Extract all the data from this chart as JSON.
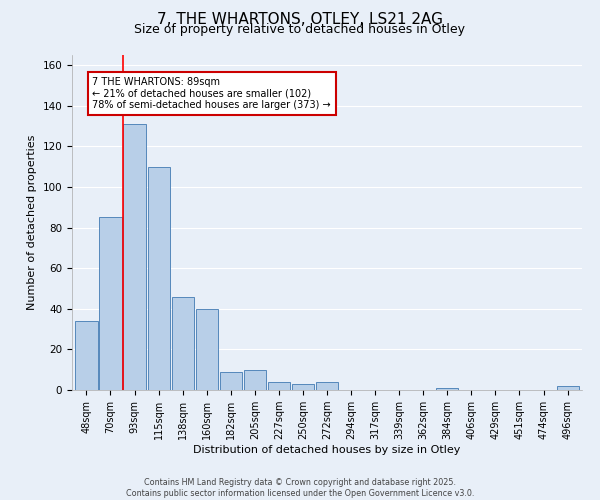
{
  "title_line1": "7, THE WHARTONS, OTLEY, LS21 2AG",
  "title_line2": "Size of property relative to detached houses in Otley",
  "xlabel": "Distribution of detached houses by size in Otley",
  "ylabel": "Number of detached properties",
  "bar_labels": [
    "48sqm",
    "70sqm",
    "93sqm",
    "115sqm",
    "138sqm",
    "160sqm",
    "182sqm",
    "205sqm",
    "227sqm",
    "250sqm",
    "272sqm",
    "294sqm",
    "317sqm",
    "339sqm",
    "362sqm",
    "384sqm",
    "406sqm",
    "429sqm",
    "451sqm",
    "474sqm",
    "496sqm"
  ],
  "bar_values": [
    34,
    85,
    131,
    110,
    46,
    40,
    9,
    10,
    4,
    3,
    4,
    0,
    0,
    0,
    0,
    1,
    0,
    0,
    0,
    0,
    2
  ],
  "bar_color": "#b8cfe8",
  "bar_edge_color": "#5588bb",
  "background_color": "#e8eff8",
  "grid_color": "#d0dce8",
  "red_line_x": 1.5,
  "annotation_text": "7 THE WHARTONS: 89sqm\n← 21% of detached houses are smaller (102)\n78% of semi-detached houses are larger (373) →",
  "annotation_box_color": "#ffffff",
  "annotation_box_edge": "#cc0000",
  "ylim": [
    0,
    165
  ],
  "yticks": [
    0,
    20,
    40,
    60,
    80,
    100,
    120,
    140,
    160
  ],
  "footer_text": "Contains HM Land Registry data © Crown copyright and database right 2025.\nContains public sector information licensed under the Open Government Licence v3.0.",
  "title_fontsize": 11,
  "subtitle_fontsize": 9,
  "label_fontsize": 8,
  "tick_fontsize": 7,
  "annot_fontsize": 7
}
